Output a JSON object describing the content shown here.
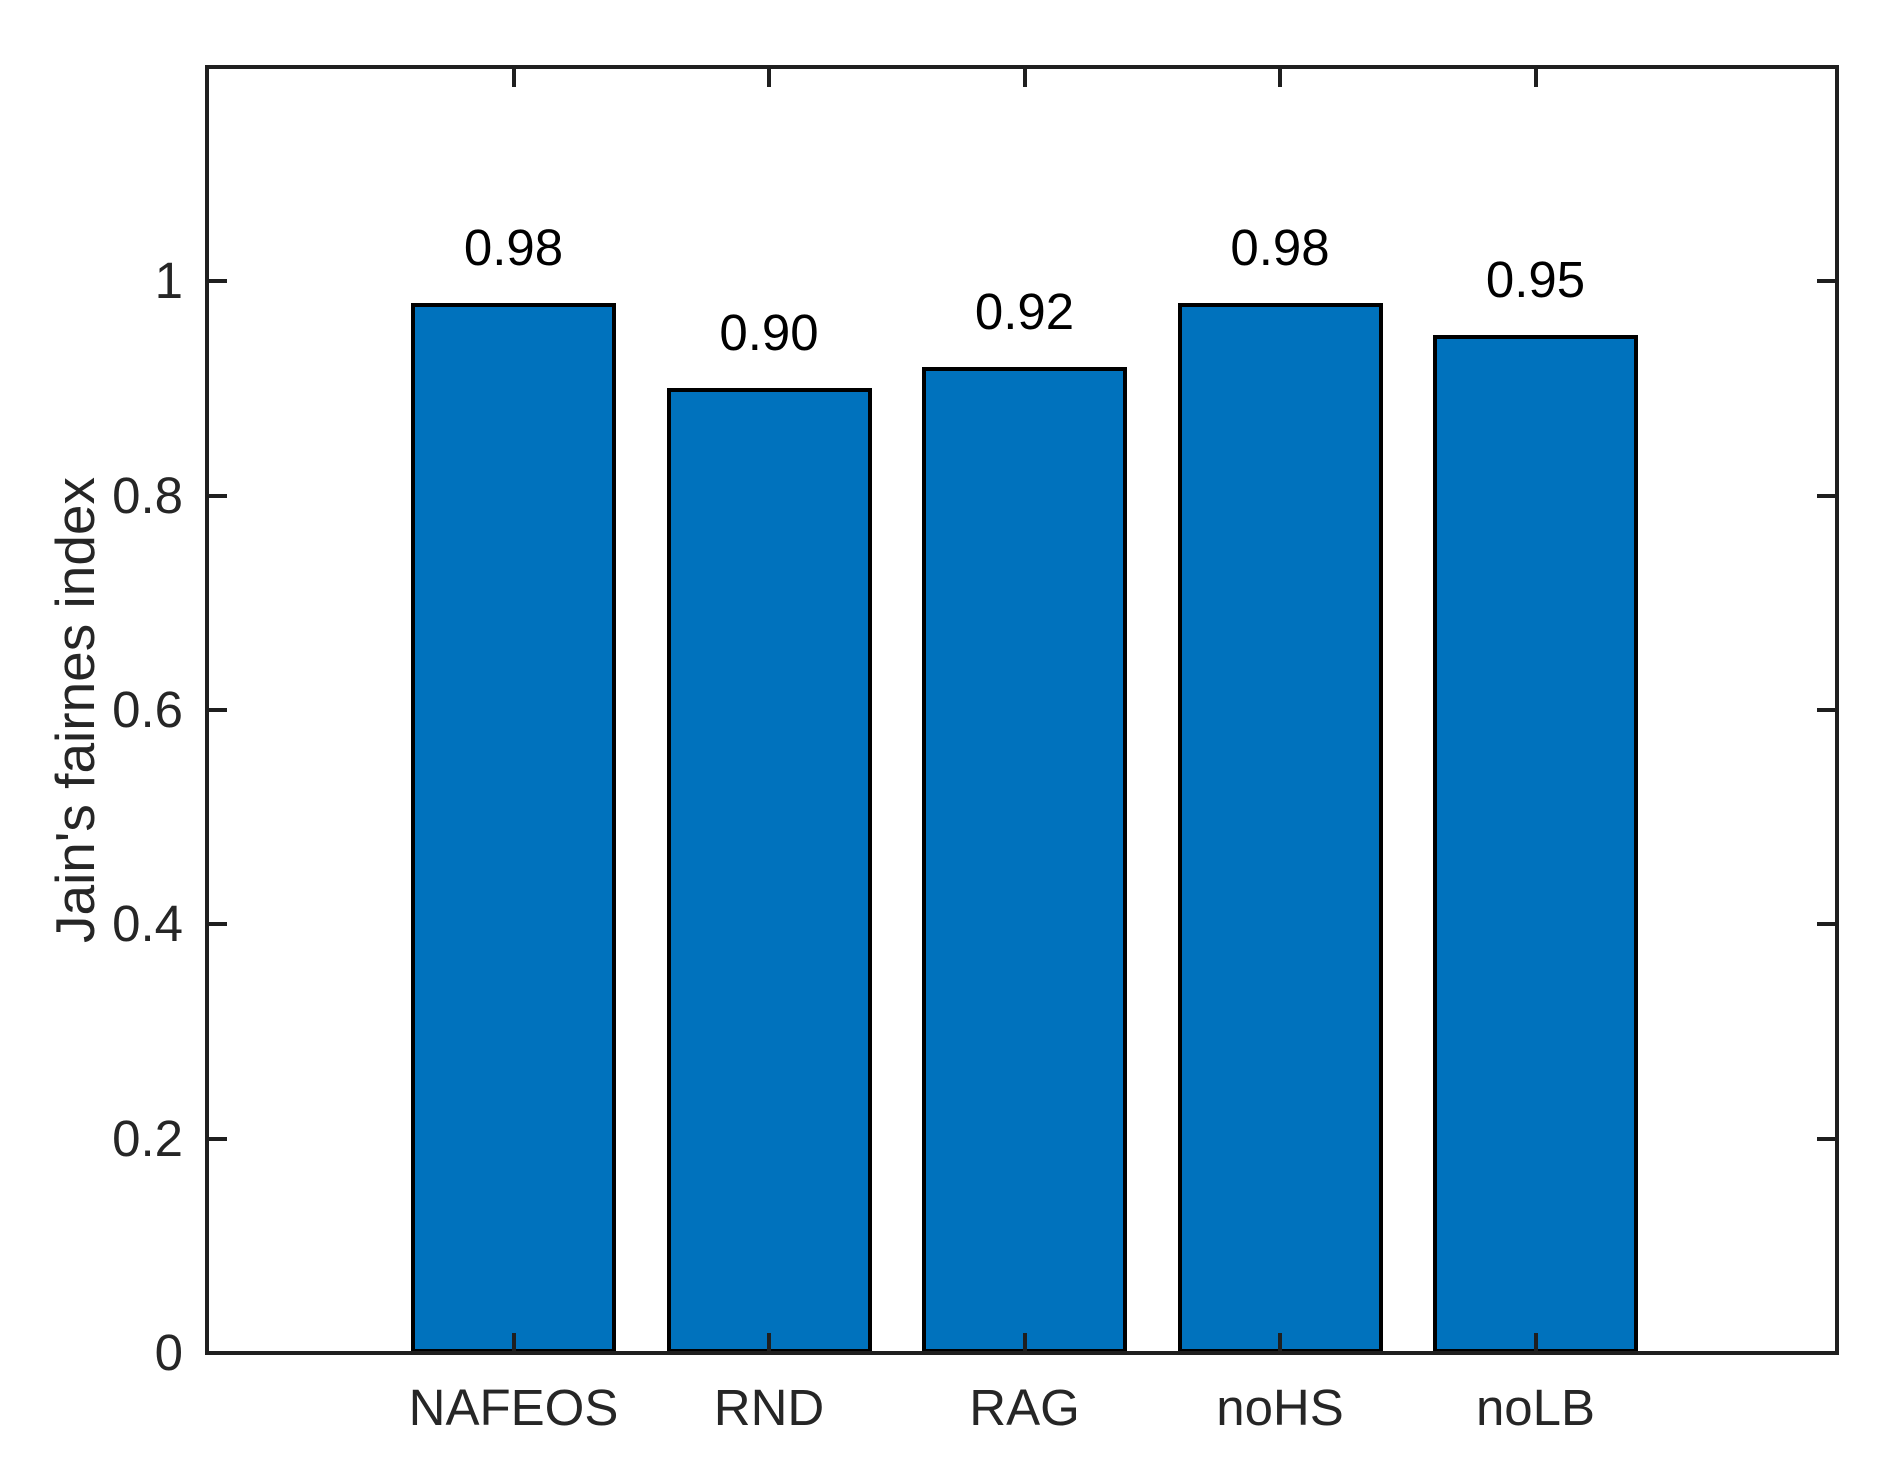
{
  "chart_data": {
    "type": "bar",
    "categories": [
      "NAFEOS",
      "RND",
      "RAG",
      "noHS",
      "noLB"
    ],
    "values": [
      0.98,
      0.9,
      0.92,
      0.98,
      0.95
    ],
    "value_labels": [
      "0.98",
      "0.90",
      "0.92",
      "0.98",
      "0.95"
    ],
    "title": "",
    "xlabel": "",
    "ylabel": "Jain's fairnes index",
    "ylim": [
      0,
      1.2
    ],
    "yticks": [
      0,
      0.2,
      0.4,
      0.6,
      0.8,
      1
    ],
    "ytick_labels": [
      "0",
      "0.2",
      "0.4",
      "0.6",
      "0.8",
      "1"
    ],
    "grid": false,
    "legend_position": "none",
    "bar_color": "#0072BD",
    "bar_edge_color": "#000000",
    "axis_color": "#262626"
  }
}
